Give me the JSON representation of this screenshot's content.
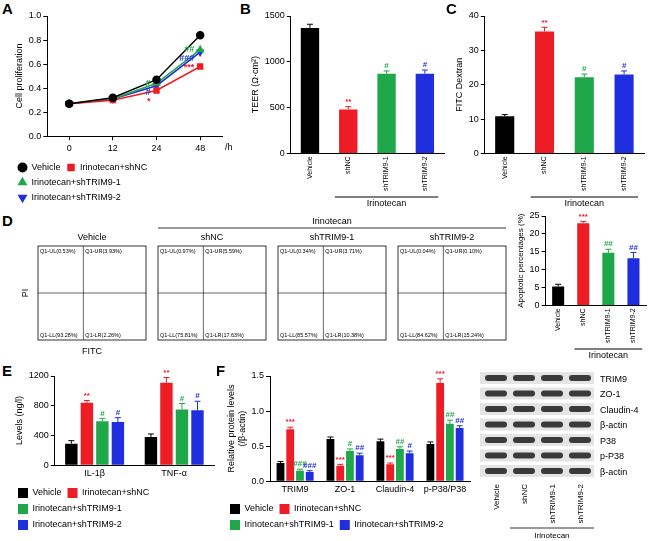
{
  "chart_data": [
    {
      "panel": "A",
      "type": "line",
      "categories": [
        "0",
        "12",
        "24",
        "48"
      ],
      "xlabel": "/h",
      "ylabel": "Cell proliferation",
      "ylim": [
        0,
        1
      ],
      "yticks": [
        {
          "value": 0,
          "label": "0.0"
        },
        0.2,
        0.4,
        0.6,
        0.8,
        {
          "value": 1,
          "label": "1.0"
        }
      ],
      "grid": false,
      "legend": "bottom",
      "series": [
        {
          "name": "Vehicle",
          "color": "#000000",
          "marker": "circle",
          "values": [
            0.27,
            0.32,
            0.47,
            0.84
          ]
        },
        {
          "name": "Irinotecan+shNC",
          "color": "#ee1c25",
          "marker": "square",
          "values": [
            0.27,
            0.3,
            0.38,
            0.58
          ],
          "annotations": [
            null,
            null,
            "*",
            "***"
          ]
        },
        {
          "name": "Irinotecan+shTRIM9-1",
          "color": "#1fa84a",
          "marker": "triangle",
          "values": [
            0.27,
            0.31,
            0.44,
            0.72
          ],
          "annotations": [
            null,
            null,
            "#",
            "##"
          ]
        },
        {
          "name": "Irinotecan+shTRIM9-2",
          "color": "#1f2fe0",
          "marker": "triangle_down",
          "values": [
            0.27,
            0.31,
            0.42,
            0.7
          ],
          "annotations": [
            null,
            null,
            "#",
            "###"
          ]
        }
      ]
    },
    {
      "panel": "B",
      "type": "bar",
      "categories": [
        "Vehicle",
        "shNC",
        "shTRIM9-1",
        "shTRIM9-2"
      ],
      "group_label": "Irinotecan",
      "ylabel": "TEER (Ω·cm²)",
      "values": [
        1370,
        480,
        870,
        870
      ],
      "errors": [
        40,
        30,
        30,
        40
      ],
      "annotations": [
        null,
        "**",
        "#",
        "#"
      ],
      "colors": [
        "#000000",
        "#ee1c25",
        "#1fa84a",
        "#1f2fe0"
      ],
      "ylim": [
        0,
        1500
      ],
      "yticks": [
        0,
        500,
        1000,
        1500
      ],
      "grid": false
    },
    {
      "panel": "C",
      "type": "bar",
      "categories": [
        "Vehicle",
        "shNC",
        "shTRIM9-1",
        "shTRIM9-2"
      ],
      "group_label": "Irinotecan",
      "ylabel": "FITC Dextran",
      "values": [
        10.8,
        35.5,
        22.2,
        23
      ],
      "errors": [
        0.5,
        1.2,
        0.9,
        1
      ],
      "annotations": [
        null,
        "**",
        "#",
        "#"
      ],
      "colors": [
        "#000000",
        "#ee1c25",
        "#1fa84a",
        "#1f2fe0"
      ],
      "ylim": [
        0,
        40
      ],
      "yticks": [
        0,
        10,
        20,
        30,
        40
      ],
      "grid": false
    },
    {
      "panel": "D",
      "type": "bar",
      "categories": [
        "Vehicle",
        "shNC",
        "shTRIM9-1",
        "shTRIM9-2"
      ],
      "group_label": "Irinotecan",
      "ylabel": "Apoptotic percentages (%)",
      "values": [
        5.3,
        23,
        14.7,
        13.2
      ],
      "errors": [
        0.6,
        0.5,
        1.0,
        1.6
      ],
      "annotations": [
        null,
        "***",
        "##",
        "##"
      ],
      "colors": [
        "#000000",
        "#ee1c25",
        "#1fa84a",
        "#1f2fe0"
      ],
      "ylim": [
        0,
        25
      ],
      "yticks": [
        0,
        5,
        10,
        15,
        20,
        25
      ],
      "grid": false
    },
    {
      "panel": "E",
      "type": "bar",
      "categories": [
        "IL-1β",
        "TNF-α"
      ],
      "ylabel": "Levels (ng/l)",
      "ylim": [
        0,
        1200
      ],
      "yticks": [
        0,
        400,
        800,
        1200
      ],
      "grid": false,
      "legend": "bottom",
      "series": [
        {
          "name": "Vehicle",
          "color": "#000000",
          "values": [
            290,
            380
          ],
          "errors": [
            40,
            40
          ]
        },
        {
          "name": "Irinotecan+shNC",
          "color": "#ee1c25",
          "values": [
            840,
            1110
          ],
          "errors": [
            30,
            70
          ],
          "annotations": [
            "**",
            "**"
          ]
        },
        {
          "name": "Irinotecan+shTRIM9-1",
          "color": "#1fa84a",
          "values": [
            590,
            750
          ],
          "errors": [
            40,
            80
          ],
          "annotations": [
            "#",
            "#"
          ]
        },
        {
          "name": "Irinotecan+shTRIM9-2",
          "color": "#1f2fe0",
          "values": [
            580,
            740
          ],
          "errors": [
            60,
            120
          ],
          "annotations": [
            "#",
            "#"
          ]
        }
      ]
    },
    {
      "panel": "F",
      "type": "bar",
      "categories": [
        "TRIM9",
        "ZO-1",
        "Claudin-4",
        "p-P38/P38"
      ],
      "ylabel": [
        "Relative protein levels",
        "(/β-actin)"
      ],
      "ylim": [
        0,
        1.5
      ],
      "yticks": [
        {
          "value": 0,
          "label": "0.0"
        },
        0.5,
        {
          "value": 1,
          "label": "1.0"
        },
        1.5
      ],
      "grid": false,
      "legend": "bottom",
      "series": [
        {
          "name": "Vehicle",
          "color": "#000000",
          "values": [
            0.26,
            0.6,
            0.57,
            0.53
          ],
          "errors": [
            0.02,
            0.03,
            0.03,
            0.03
          ]
        },
        {
          "name": "Irinotecan+shNC",
          "color": "#ee1c25",
          "values": [
            0.74,
            0.22,
            0.24,
            1.4
          ],
          "errors": [
            0.03,
            0.02,
            0.02,
            0.06
          ],
          "annotations": [
            "***",
            "***",
            "***",
            "***"
          ]
        },
        {
          "name": "Irinotecan+shTRIM9-1",
          "color": "#1fa84a",
          "values": [
            0.15,
            0.43,
            0.46,
            0.82
          ],
          "errors": [
            0.02,
            0.03,
            0.03,
            0.05
          ],
          "annotations": [
            "###",
            "#",
            "##",
            "##"
          ]
        },
        {
          "name": "Irinotecan+shTRIM9-2",
          "color": "#1f2fe0",
          "values": [
            0.13,
            0.37,
            0.4,
            0.76
          ],
          "errors": [
            0.02,
            0.03,
            0.03,
            0.03
          ],
          "annotations": [
            "###",
            "##",
            "#",
            "##"
          ]
        }
      ]
    }
  ],
  "flow_cytometry": {
    "xlabel": "FITC",
    "ylabel": "PI",
    "group_label": "Irinotecan",
    "plots": [
      {
        "title": "Vehicle",
        "quadrants": {
          "UL": "Q1-UL(0.53%)",
          "UR": "Q1-UR(3.93%)",
          "LL": "Q1-LL(93.28%)",
          "LR": "Q1-LR(2.26%)"
        }
      },
      {
        "title": "shNC",
        "quadrants": {
          "UL": "Q1-UL(0.97%)",
          "UR": "Q1-UR(5.59%)",
          "LL": "Q1-LL(75.81%)",
          "LR": "Q1-LR(17.63%)"
        }
      },
      {
        "title": "shTRIM9-1",
        "quadrants": {
          "UL": "Q1-UL(0.34%)",
          "UR": "Q1-UR(3.71%)",
          "LL": "Q1-LL(85.57%)",
          "LR": "Q1-LR(10.38%)"
        }
      },
      {
        "title": "shTRIM9-2",
        "quadrants": {
          "UL": "Q1-UL(0.04%)",
          "UR": "Q1-UR(0.10%)",
          "LL": "Q1-LL(84.62%)",
          "LR": "Q1-LR(15.24%)"
        }
      }
    ]
  },
  "western_blot": {
    "rows": [
      "TRIM9",
      "ZO-1",
      "Claudin-4",
      "β-actin",
      "P38",
      "p-P38",
      "β-actin"
    ],
    "lanes": [
      "Vehicle",
      "shNC",
      "shTRIM9-1",
      "shTRIM9-2"
    ],
    "group_label": "Irinotecan"
  }
}
